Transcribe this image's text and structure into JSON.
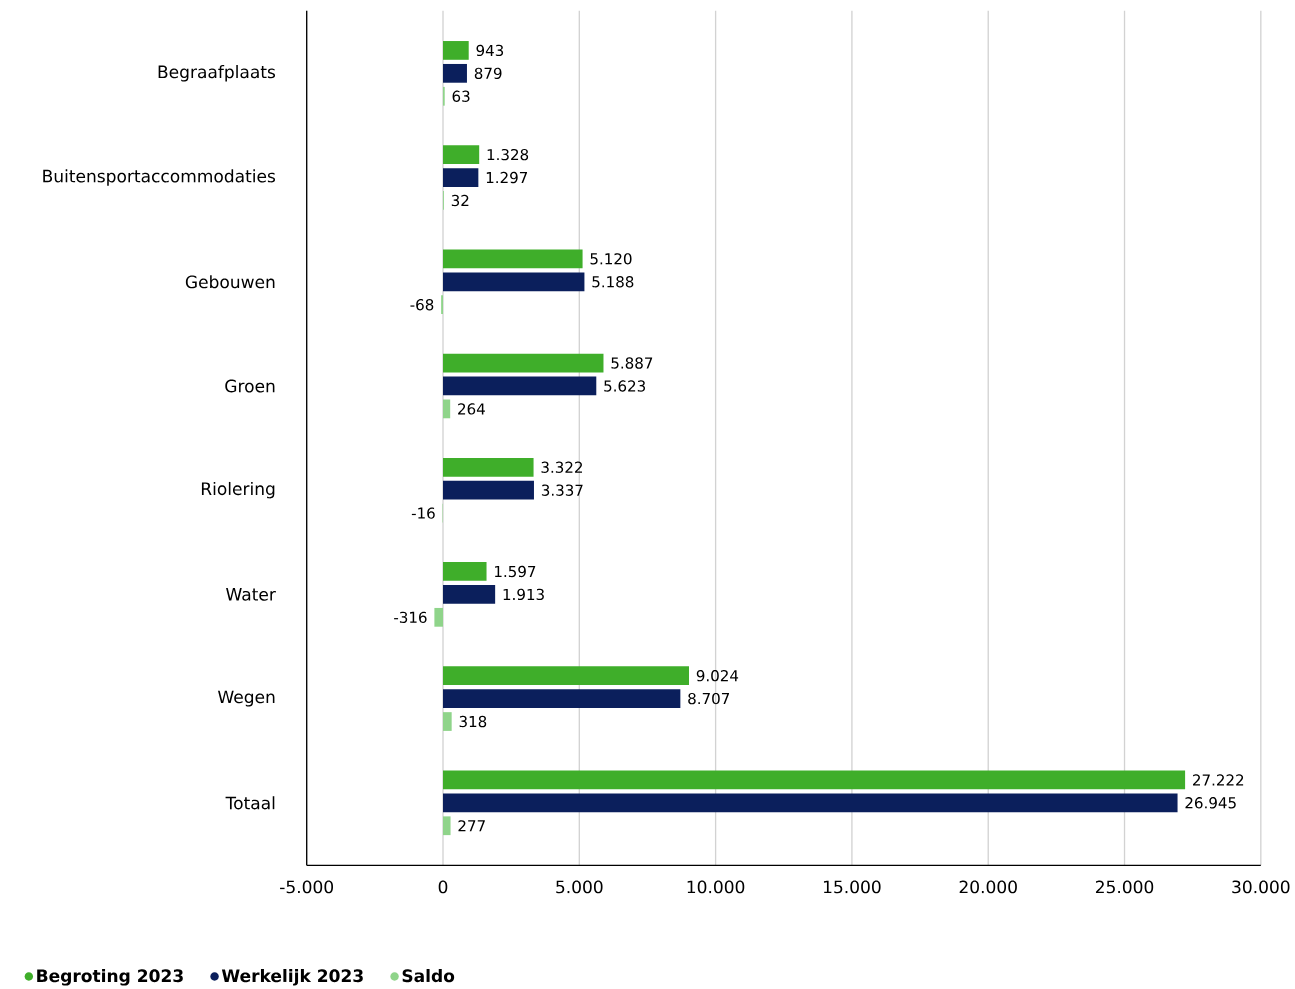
{
  "chart_data": {
    "type": "bar",
    "orientation": "horizontal",
    "categories": [
      "Begraafplaats",
      "Buitensportaccommodaties",
      "Gebouwen",
      "Groen",
      "Riolering",
      "Water",
      "Wegen",
      "Totaal"
    ],
    "series": [
      {
        "name": "Begroting 2023",
        "color": "#3fae2a",
        "values": [
          943,
          1328,
          5120,
          5887,
          3322,
          1597,
          9024,
          27222
        ],
        "value_labels": [
          "943",
          "1.328",
          "5.120",
          "5.887",
          "3.322",
          "1.597",
          "9.024",
          "27.222"
        ]
      },
      {
        "name": "Werkelijk 2023",
        "color": "#0b1f5c",
        "values": [
          879,
          1297,
          5188,
          5623,
          3337,
          1913,
          8707,
          26945
        ],
        "value_labels": [
          "879",
          "1.297",
          "5.188",
          "5.623",
          "3.337",
          "1.913",
          "8.707",
          "26.945"
        ]
      },
      {
        "name": "Saldo",
        "color": "#8fd48a",
        "values": [
          63,
          32,
          -68,
          264,
          -16,
          -316,
          318,
          277
        ],
        "value_labels": [
          "63",
          "32",
          "-68",
          "264",
          "-16",
          "-316",
          "318",
          "277"
        ]
      }
    ],
    "xlim": [
      -5000,
      30000
    ],
    "xticks": [
      {
        "value": -5000,
        "label": "-5.000"
      },
      0,
      {
        "value": 5000,
        "label": "5.000"
      },
      {
        "value": 10000,
        "label": "10.000"
      },
      {
        "value": 15000,
        "label": "15.000"
      },
      {
        "value": 20000,
        "label": "20.000"
      },
      {
        "value": 25000,
        "label": "25.000"
      },
      {
        "value": 30000,
        "label": "30.000"
      }
    ],
    "grid": "x",
    "legend": "bottom left",
    "marker": "circle"
  }
}
